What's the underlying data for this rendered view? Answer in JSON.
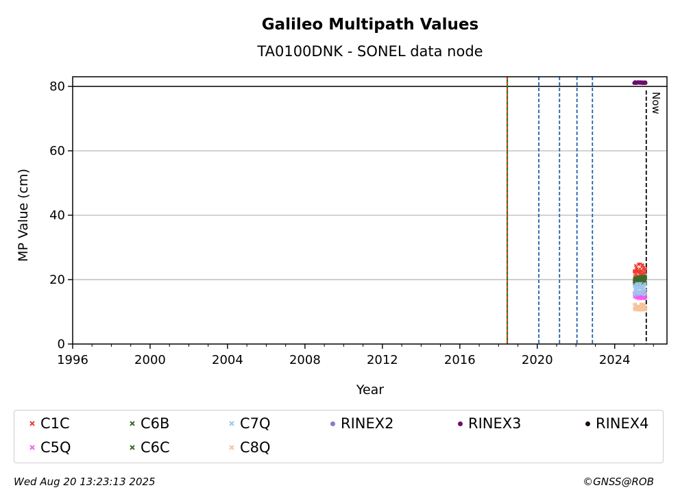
{
  "chart_data": {
    "type": "scatter",
    "title": "Galileo Multipath Values",
    "subtitle": "TA0100DNK - SONEL data node",
    "xlabel": "Year",
    "ylabel": "MP Value (cm)",
    "xlim": [
      1996,
      2026.7
    ],
    "ylim": [
      0,
      83
    ],
    "x_ticks": [
      1996,
      2000,
      2004,
      2008,
      2012,
      2016,
      2020,
      2024
    ],
    "y_ticks": [
      0,
      20,
      40,
      60,
      80
    ],
    "grid": "horizontal",
    "reference_line_y": 80,
    "now_label": "Now",
    "now_x": 2025.63,
    "vertical_events": [
      {
        "x": 2018.45,
        "color": "#008000",
        "style": "solid"
      },
      {
        "x": 2018.45,
        "color": "#e8312a",
        "style": "dashed"
      },
      {
        "x": 2020.08,
        "color": "#1f5fae",
        "style": "dashed"
      },
      {
        "x": 2021.15,
        "color": "#1f5fae",
        "style": "dashed"
      },
      {
        "x": 2022.05,
        "color": "#1f5fae",
        "style": "dashed"
      },
      {
        "x": 2022.85,
        "color": "#1f5fae",
        "style": "dashed"
      }
    ],
    "series": [
      {
        "name": "C1C",
        "color": "#ee3a2c",
        "marker": "x",
        "x_range": [
          2025.0,
          2025.6
        ],
        "y_center": 22.5,
        "y_spread": 2.5
      },
      {
        "name": "C5Q",
        "color": "#f35ff3",
        "marker": "x",
        "x_range": [
          2025.0,
          2025.6
        ],
        "y_center": 15.0,
        "y_spread": 1.0
      },
      {
        "name": "C6B",
        "color": "#3d6b2a",
        "marker": "x",
        "x_range": [
          2025.0,
          2025.6
        ],
        "y_center": 20.0,
        "y_spread": 1.2
      },
      {
        "name": "C6C",
        "color": "#3d6b2a",
        "marker": "x",
        "x_range": [
          2025.0,
          2025.6
        ],
        "y_center": 19.5,
        "y_spread": 1.0
      },
      {
        "name": "C7Q",
        "color": "#9ec6ec",
        "marker": "x",
        "x_range": [
          2025.0,
          2025.6
        ],
        "y_center": 17.0,
        "y_spread": 2.0
      },
      {
        "name": "C8Q",
        "color": "#f5c39c",
        "marker": "x",
        "x_range": [
          2025.0,
          2025.6
        ],
        "y_center": 11.5,
        "y_spread": 1.0
      },
      {
        "name": "RINEX2",
        "color": "#8a7cc8",
        "marker": "o"
      },
      {
        "name": "RINEX3",
        "color": "#6b0f6b",
        "marker": "o",
        "x_range": [
          2025.0,
          2025.6
        ],
        "y_center": 81.2,
        "y_spread": 0.2
      },
      {
        "name": "RINEX4",
        "color": "#1a0a1a",
        "marker": "o"
      }
    ]
  },
  "legend": {
    "items": [
      {
        "label": "C1C",
        "color": "#ee3a2c",
        "marker": "x"
      },
      {
        "label": "C6B",
        "color": "#3d6b2a",
        "marker": "x"
      },
      {
        "label": "C7Q",
        "color": "#9ec6ec",
        "marker": "x"
      },
      {
        "label": "RINEX2",
        "color": "#8a7cc8",
        "marker": "o"
      },
      {
        "label": "RINEX3",
        "color": "#6b0f6b",
        "marker": "o"
      },
      {
        "label": "RINEX4",
        "color": "#1a0a1a",
        "marker": "o"
      },
      {
        "label": "C5Q",
        "color": "#f35ff3",
        "marker": "x"
      },
      {
        "label": "C6C",
        "color": "#3d6b2a",
        "marker": "x"
      },
      {
        "label": "C8Q",
        "color": "#f5c39c",
        "marker": "x"
      }
    ]
  },
  "footer": {
    "timestamp": "Wed Aug 20 13:23:13 2025",
    "copyright": "©GNSS@ROB"
  }
}
